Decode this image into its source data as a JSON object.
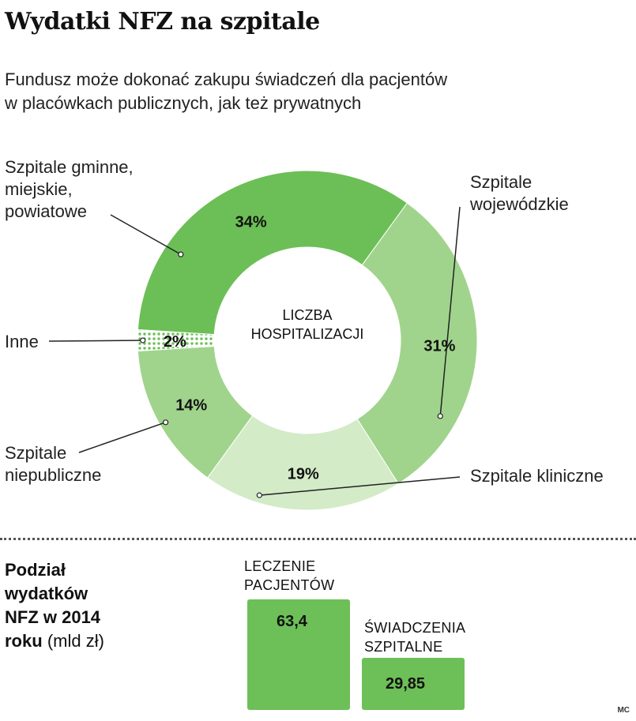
{
  "title": "Wydatki NFZ na szpitale",
  "subtitle": [
    "Fundusz może dokonać zakupu świadczeń dla pacjentów",
    "w placówkach publicznych, jak też prywatnych"
  ],
  "chart_data": [
    {
      "type": "pie",
      "style": "donut",
      "center_label": [
        "LICZBA",
        "HOSPITALIZACJI"
      ],
      "unit": "%",
      "slices": [
        {
          "name": "Szpitale gminne, miejskie, powiatowe",
          "label_lines": [
            "Szpitale gminne,",
            "miejskie,",
            "powiatowe"
          ],
          "value": 34,
          "value_label": "34%",
          "color": "#6cbf56",
          "pattern": "solid"
        },
        {
          "name": "Szpitale wojewódzkie",
          "label_lines": [
            "Szpitale",
            "wojewódzkie"
          ],
          "value": 31,
          "value_label": "31%",
          "color": "#a0d48c",
          "pattern": "solid"
        },
        {
          "name": "Szpitale kliniczne",
          "label_lines": [
            "Szpitale kliniczne"
          ],
          "value": 19,
          "value_label": "19%",
          "color": "#d3ebc7",
          "pattern": "solid"
        },
        {
          "name": "Szpitale niepubliczne",
          "label_lines": [
            "Szpitale",
            "niepubliczne"
          ],
          "value": 14,
          "value_label": "14%",
          "color": "#a0d48c",
          "pattern": "solid"
        },
        {
          "name": "Inne",
          "label_lines": [
            "Inne"
          ],
          "value": 2,
          "value_label": "2%",
          "color": "#6cbf56",
          "pattern": "dotted"
        }
      ]
    },
    {
      "type": "bar",
      "title_bold": [
        "Podział",
        "wydatków",
        "NFZ w 2014",
        "roku"
      ],
      "title_unit": "(mld zł)",
      "unit": "mld zł",
      "categories": [
        "LECZENIE PACJENTÓW",
        "ŚWIADCZENIA SZPITALNE"
      ],
      "category_lines": [
        [
          "LECZENIE",
          "PACJENTÓW"
        ],
        [
          "ŚWIADCZENIA",
          "SZPITALNE"
        ]
      ],
      "values": [
        63.4,
        29.85
      ],
      "value_labels": [
        "63,4",
        "29,85"
      ],
      "color": "#6dbf57"
    }
  ],
  "credit": "MC"
}
